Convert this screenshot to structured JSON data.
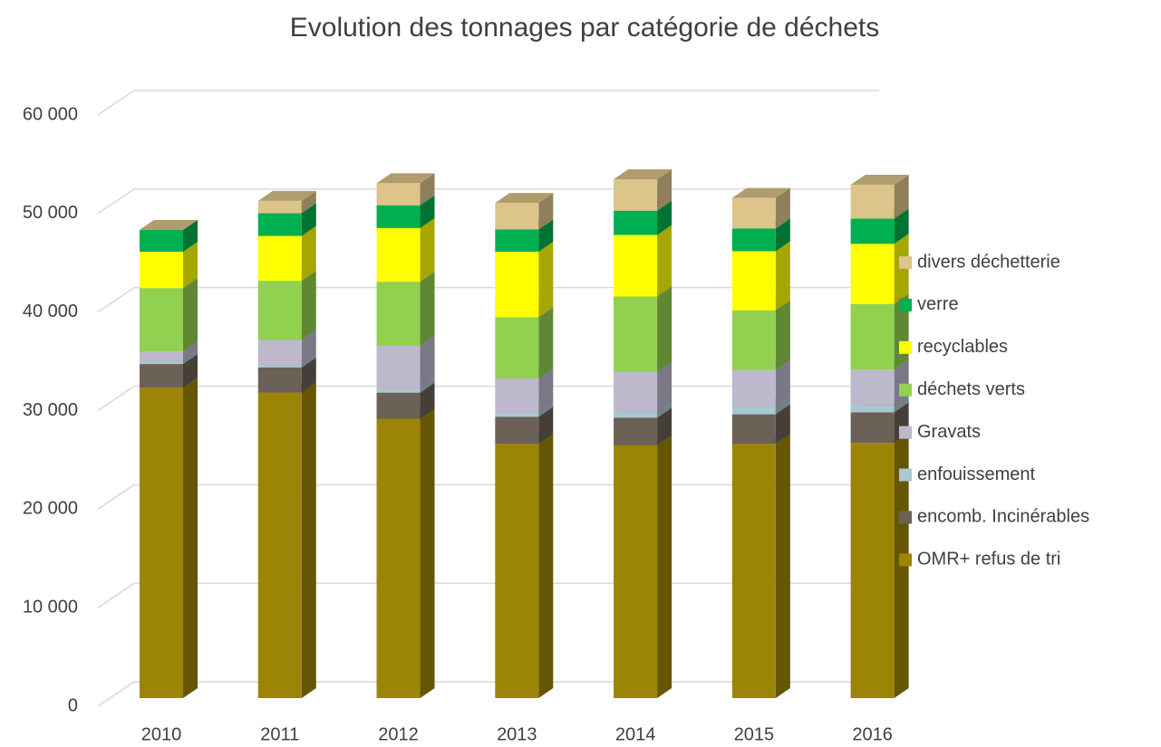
{
  "chart_data": {
    "type": "bar",
    "stacked": true,
    "three_d": true,
    "title": "Evolution des tonnages par catégorie de déchets",
    "categories": [
      "2010",
      "2011",
      "2012",
      "2013",
      "2014",
      "2015",
      "2016"
    ],
    "series": [
      {
        "name": "OMR+ refus de tri",
        "color": "#9c8406",
        "values": [
          31500,
          31000,
          28350,
          25800,
          25650,
          25800,
          25900
        ]
      },
      {
        "name": "encomb. Incinérables",
        "color": "#6b6157",
        "values": [
          2400,
          2550,
          2650,
          2750,
          2800,
          3000,
          3100
        ]
      },
      {
        "name": "enfouissement",
        "color": "#a9c7d0",
        "values": [
          300,
          250,
          450,
          350,
          550,
          750,
          700
        ]
      },
      {
        "name": "Gravats",
        "color": "#bdb8cc",
        "values": [
          1000,
          2550,
          4350,
          3550,
          4100,
          3750,
          3650
        ]
      },
      {
        "name": "déchets verts",
        "color": "#92d050",
        "values": [
          6400,
          6000,
          6450,
          6200,
          7650,
          6050,
          6650
        ]
      },
      {
        "name": "recyclables",
        "color": "#ffff00",
        "values": [
          3700,
          4550,
          5450,
          6650,
          6250,
          6000,
          6100
        ]
      },
      {
        "name": "verre",
        "color": "#00b050",
        "values": [
          2200,
          2300,
          2300,
          2250,
          2450,
          2300,
          2550
        ]
      },
      {
        "name": "divers déchetterie",
        "color": "#dcc48a",
        "values": [
          0,
          1250,
          2250,
          2700,
          3200,
          3100,
          3450
        ]
      }
    ],
    "ylim": [
      0,
      60000
    ],
    "yticks": [
      0,
      {
        "value": 10000,
        "label": "10 000"
      },
      {
        "value": 20000,
        "label": "20 000"
      },
      {
        "value": 30000,
        "label": "30 000"
      },
      {
        "value": 40000,
        "label": "40 000"
      },
      {
        "value": 50000,
        "label": "50 000"
      },
      {
        "value": 60000,
        "label": "60 000"
      }
    ],
    "grid": true,
    "legend": "right"
  }
}
